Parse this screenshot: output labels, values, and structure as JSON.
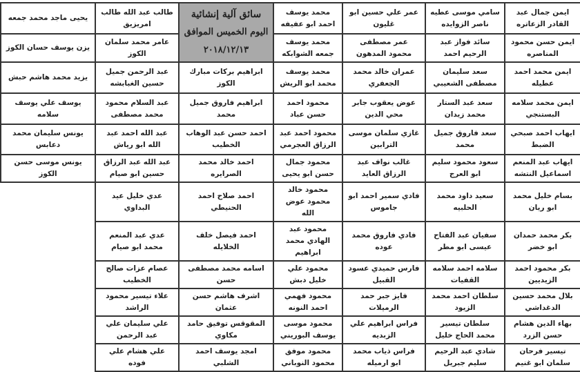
{
  "header": {
    "title": "سائق آلية إنشائية",
    "day": "اليوم الخميس الموافق",
    "date": "٢٠١٨/١٢/١٣"
  },
  "rows": [
    [
      "ايمن جمال عبد القادر الزعاتره",
      "سامي موسى عطيه ناصر الزوايده",
      "عمر علي حسين ابو غليون",
      "محمد يوسف احمد ابو عفيفه",
      null,
      "طالب عبد الله طالب امريزيق",
      "يحيى ماجد محمد جمعه"
    ],
    [
      "ايمن حسن محمود المناصره",
      "سائد فواز عبد الرحيم احمد",
      "عمر مصطفى محمود المدهون",
      "محمد يوسف جمعه الشوابكه",
      null,
      "عامر محمد سلمان الكوز",
      "يزن يوسف حسان الكوز"
    ],
    [
      "ايمن محمد احمد عطيله",
      "سعد سليمان مصطفى الشعيبي",
      "عمران خالد محمد الجعفري",
      "محمد يوسف محمد ابو الريش",
      "ابراهيم بركات مبارك الكوز",
      "عبد الرحمن جميل حسين الغبابشه",
      "يزيد محمد هاشم حبش"
    ],
    [
      "ايمن محمد سلامه البستنجي",
      "سعد عبد الستار محمد زيدان",
      "عوض يعقوب جابر محي الدين",
      "محمود احمد حسن عباد",
      "ابراهيم فاروق جميل محمد",
      "عبد السلام محمود محمد مصطفى",
      "يوسف علي يوسف سلامه"
    ],
    [
      "ايهاب احمد صبحي الضبط",
      "سعد فاروق جميل محمد",
      "غازي سلمان موسى الترابين",
      "محمود احمد عبد الرزاق العجرمي",
      "احمد حسن عبد الوهاب الخطيب",
      "عبد الله احمد عبد الله ابو رياش",
      "يونس سليمان محمد دعابس"
    ],
    [
      "ايهاب عبد المنعم اسماعيل النتشه",
      "سعود محمود سليم ابو العرج",
      "غالب نواف عبد الرزاق العايد",
      "محمود جمال حسن ابو يحيى",
      "احمد خالد محمد الصرايره",
      "عبد الله عبد الرزاق حسين ابو صيام",
      "يونس موسى حسن الكوز"
    ],
    [
      "بسام خليل محمد ابو ريان",
      "سعيد داود محمد الحلبيه",
      "فادي سمير احمد ابو جاموس",
      "محمود خالد محمود عوض الله",
      "احمد صلاح احمد الحنيطي",
      "عدي خليل عيد البداوي",
      ""
    ],
    [
      "بكر محمد حمدان ابو خضر",
      "سفيان عبد الفتاح عيسى ابو مطر",
      "فادي فاروق محمد عوده",
      "محمود عبد الهادي محمد ابراهيم",
      "احمد فيصل خلف الخلايله",
      "عدي عبد المنعم محمد ابو صيام",
      ""
    ],
    [
      "بكر محمود احمد الزيديين",
      "سلامه احمد سلامه القفيات",
      "فارس حميدي عسود القبيل",
      "محمود علي خليل دبش",
      "اسامه محمد مصطفى حسن",
      "عصام عزات صالح الخطيب",
      ""
    ],
    [
      "بلال محمد حسين الدغداشي",
      "سلطان احمد محمد الزيود",
      "فايز جبر حمد الرميلات",
      "محمود فهمي احمد النونه",
      "اشرف هاشم حسن عثمان",
      "علاء تيسير محمود الراشد",
      ""
    ],
    [
      "بهاء الدين هشام حسن الزرد",
      "سلطان تيسير محمد الحاج خليل",
      "فراس ابراهيم علي الزبديه",
      "محمود موسى يوسف البوريني",
      "المقوقس توفيق حامد مكاوي",
      "علي سليمان علي عبد الرحمن",
      ""
    ],
    [
      "تيسير فرحان سلمان ابو غنيم",
      "شادي عبد الرحيم سليم جبريل",
      "فراس ذياب محمد ابو ارميله",
      "محمود موفق محمود النوباني",
      "امجد يوسف احمد الشلبي",
      "علي هشام علي فوده",
      ""
    ]
  ],
  "colors": {
    "header_bg": "#a9a9a9",
    "border": "#333333"
  }
}
